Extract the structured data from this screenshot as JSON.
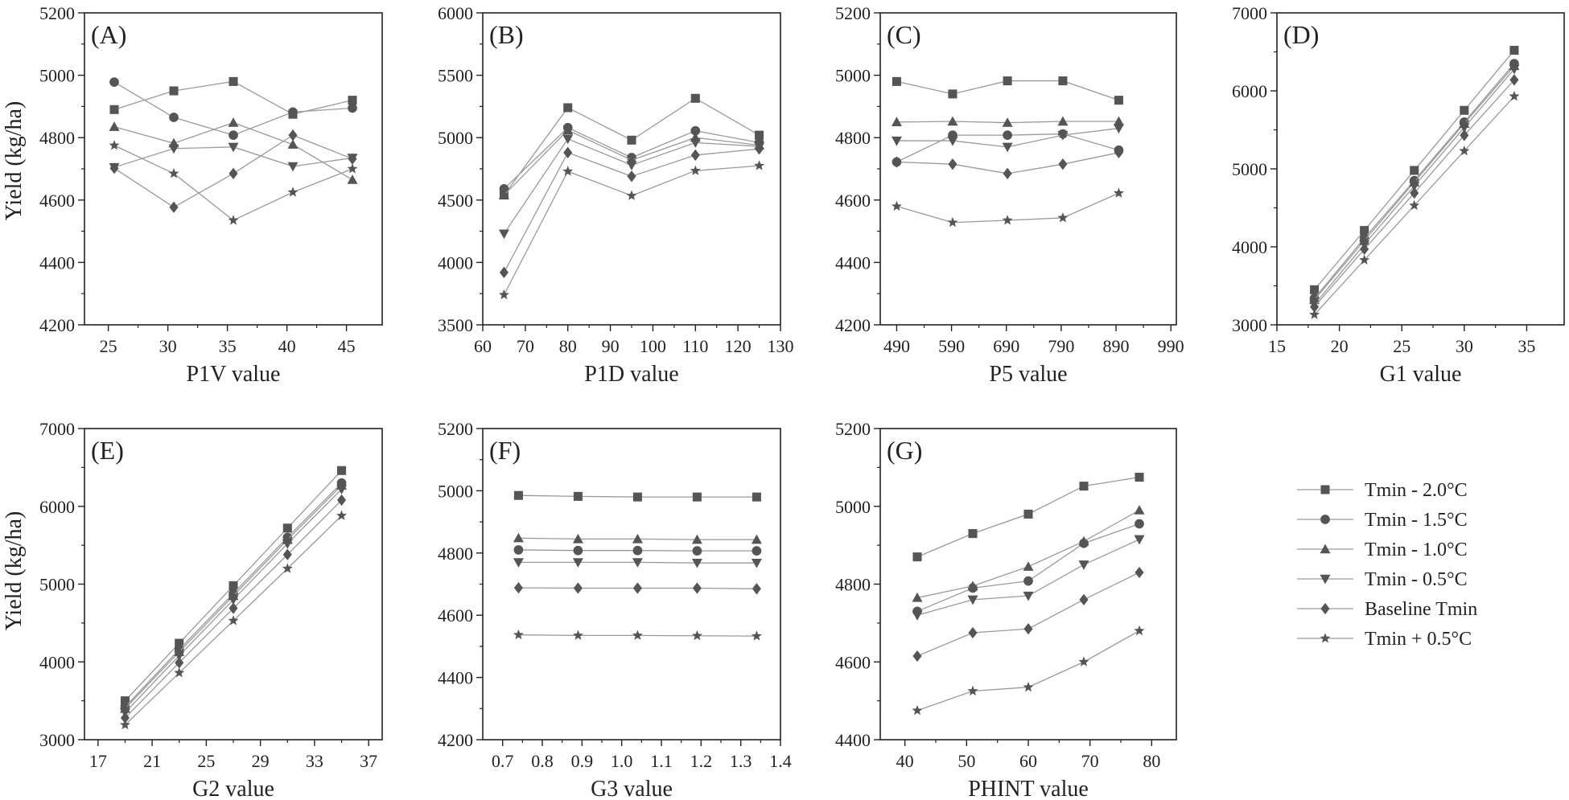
{
  "figure": {
    "ylabel_top": "Yield (kg/ha)",
    "ylabel_bottom": "Yield (kg/ha)"
  },
  "legend": {
    "entries": [
      {
        "label": "Tmin - 2.0°C",
        "marker": "square"
      },
      {
        "label": "Tmin - 1.5°C",
        "marker": "circle"
      },
      {
        "label": "Tmin - 1.0°C",
        "marker": "triangle-up"
      },
      {
        "label": "Tmin - 0.5°C",
        "marker": "triangle-down"
      },
      {
        "label": "Baseline Tmin",
        "marker": "diamond"
      },
      {
        "label": "Tmin + 0.5°C",
        "marker": "star"
      }
    ]
  },
  "colors": {
    "line": "#9a9a9a",
    "marker": "#555555",
    "axis": "#222222"
  },
  "chart_data": [
    {
      "type": "line",
      "panel_label": "(A)",
      "xlabel": "P1V value",
      "ylabel": "Yield (kg/ha)",
      "xlim": [
        23,
        48
      ],
      "xticks": [
        25,
        30,
        35,
        40,
        45
      ],
      "ylim": [
        4200,
        5200
      ],
      "yticks": [
        4200,
        4400,
        4600,
        4800,
        5000,
        5200
      ],
      "x": [
        25.5,
        30.5,
        35.5,
        40.5,
        45.5
      ],
      "series": [
        {
          "name": "Tmin - 2.0°C",
          "values": [
            4890,
            4950,
            4980,
            4875,
            4920
          ]
        },
        {
          "name": "Tmin - 1.5°C",
          "values": [
            4978,
            4865,
            4808,
            4882,
            4895
          ]
        },
        {
          "name": "Tmin - 1.0°C",
          "values": [
            4835,
            4782,
            4848,
            4778,
            4665
          ]
        },
        {
          "name": "Tmin - 0.5°C",
          "values": [
            4705,
            4765,
            4770,
            4708,
            4735
          ]
        },
        {
          "name": "Baseline Tmin",
          "values": [
            4702,
            4577,
            4685,
            4808,
            4732
          ]
        },
        {
          "name": "Tmin + 0.5°C",
          "values": [
            4775,
            4685,
            4535,
            4625,
            4700
          ]
        }
      ]
    },
    {
      "type": "line",
      "panel_label": "(B)",
      "xlabel": "P1D value",
      "ylabel": "Yield (kg/ha)",
      "xlim": [
        60,
        130
      ],
      "xticks": [
        60,
        70,
        80,
        90,
        100,
        110,
        120,
        130
      ],
      "ylim": [
        3500,
        6000
      ],
      "yticks": [
        3500,
        4000,
        4500,
        5000,
        5500,
        6000
      ],
      "x": [
        65,
        80,
        95,
        110,
        125
      ],
      "series": [
        {
          "name": "Tmin - 2.0°C",
          "values": [
            4540,
            5240,
            4980,
            5315,
            5020
          ]
        },
        {
          "name": "Tmin - 1.5°C",
          "values": [
            4590,
            5080,
            4840,
            5055,
            4960
          ]
        },
        {
          "name": "Tmin - 1.0°C",
          "values": [
            4540,
            5060,
            4820,
            5000,
            4940
          ]
        },
        {
          "name": "Tmin - 0.5°C",
          "values": [
            4230,
            4990,
            4780,
            4960,
            4930
          ]
        },
        {
          "name": "Baseline Tmin",
          "values": [
            3920,
            4880,
            4690,
            4860,
            4910
          ]
        },
        {
          "name": "Tmin + 0.5°C",
          "values": [
            3740,
            4730,
            4535,
            4735,
            4775
          ]
        }
      ]
    },
    {
      "type": "line",
      "panel_label": "(C)",
      "xlabel": "P5 value",
      "ylabel": "Yield (kg/ha)",
      "xlim": [
        460,
        1000
      ],
      "xticks": [
        490,
        590,
        690,
        790,
        890,
        990
      ],
      "ylim": [
        4200,
        5200
      ],
      "yticks": [
        4200,
        4400,
        4600,
        4800,
        5000,
        5200
      ],
      "x": [
        490,
        592,
        692,
        793,
        895
      ],
      "series": [
        {
          "name": "Tmin - 2.0°C",
          "values": [
            4980,
            4940,
            4982,
            4982,
            4920
          ]
        },
        {
          "name": "Tmin - 1.5°C",
          "values": [
            4722,
            4808,
            4808,
            4812,
            4760
          ]
        },
        {
          "name": "Tmin - 1.0°C",
          "values": [
            4850,
            4852,
            4848,
            4852,
            4852
          ]
        },
        {
          "name": "Tmin - 0.5°C",
          "values": [
            4790,
            4790,
            4770,
            4808,
            4830
          ]
        },
        {
          "name": "Baseline Tmin",
          "values": [
            4722,
            4715,
            4685,
            4715,
            4752
          ]
        },
        {
          "name": "Tmin + 0.5°C",
          "values": [
            4580,
            4528,
            4535,
            4543,
            4622
          ]
        }
      ]
    },
    {
      "type": "line",
      "panel_label": "(D)",
      "xlabel": "G1 value",
      "ylabel": "Yield (kg/ha)",
      "xlim": [
        15,
        38
      ],
      "xticks": [
        15,
        20,
        25,
        30,
        35
      ],
      "ylim": [
        3000,
        7000
      ],
      "yticks": [
        3000,
        4000,
        5000,
        6000,
        7000
      ],
      "x": [
        18,
        22,
        26,
        30,
        34
      ],
      "series": [
        {
          "name": "Tmin - 2.0°C",
          "values": [
            3450,
            4210,
            4980,
            5750,
            6520
          ]
        },
        {
          "name": "Tmin - 1.5°C",
          "values": [
            3340,
            4110,
            4850,
            5600,
            6350
          ]
        },
        {
          "name": "Tmin - 1.0°C",
          "values": [
            3320,
            4080,
            4830,
            5580,
            6320
          ]
        },
        {
          "name": "Tmin - 0.5°C",
          "values": [
            3260,
            4030,
            4780,
            5530,
            6280
          ]
        },
        {
          "name": "Baseline Tmin",
          "values": [
            3230,
            3970,
            4690,
            5430,
            6140
          ]
        },
        {
          "name": "Tmin + 0.5°C",
          "values": [
            3130,
            3830,
            4530,
            5230,
            5930
          ]
        }
      ]
    },
    {
      "type": "line",
      "panel_label": "(E)",
      "xlabel": "G2 value",
      "ylabel": "Yield (kg/ha)",
      "xlim": [
        16,
        38
      ],
      "xticks": [
        17,
        21,
        25,
        29,
        33,
        37
      ],
      "ylim": [
        3000,
        7000
      ],
      "yticks": [
        3000,
        4000,
        5000,
        6000,
        7000
      ],
      "x": [
        19,
        23,
        27,
        31,
        35
      ],
      "series": [
        {
          "name": "Tmin - 2.0°C",
          "values": [
            3500,
            4240,
            4980,
            5720,
            6460
          ]
        },
        {
          "name": "Tmin - 1.5°C",
          "values": [
            3420,
            4160,
            4880,
            5600,
            6300
          ]
        },
        {
          "name": "Tmin - 1.0°C",
          "values": [
            3400,
            4130,
            4850,
            5570,
            6270
          ]
        },
        {
          "name": "Tmin - 0.5°C",
          "values": [
            3350,
            4080,
            4800,
            5520,
            6220
          ]
        },
        {
          "name": "Baseline Tmin",
          "values": [
            3280,
            3990,
            4690,
            5380,
            6080
          ]
        },
        {
          "name": "Tmin + 0.5°C",
          "values": [
            3190,
            3860,
            4530,
            5200,
            5880
          ]
        }
      ]
    },
    {
      "type": "line",
      "panel_label": "(F)",
      "xlabel": "G3 value",
      "ylabel": "Yield (kg/ha)",
      "xlim": [
        0.65,
        1.4
      ],
      "xticks": [
        0.7,
        0.8,
        0.9,
        1.0,
        1.1,
        1.2,
        1.3,
        1.4
      ],
      "ylim": [
        4200,
        5200
      ],
      "yticks": [
        4200,
        4400,
        4600,
        4800,
        5000,
        5200
      ],
      "x": [
        0.74,
        0.89,
        1.04,
        1.19,
        1.34
      ],
      "series": [
        {
          "name": "Tmin - 2.0°C",
          "values": [
            4985,
            4982,
            4980,
            4980,
            4980
          ]
        },
        {
          "name": "Tmin - 1.5°C",
          "values": [
            4810,
            4808,
            4808,
            4807,
            4807
          ]
        },
        {
          "name": "Tmin - 1.0°C",
          "values": [
            4848,
            4845,
            4845,
            4843,
            4843
          ]
        },
        {
          "name": "Tmin - 0.5°C",
          "values": [
            4770,
            4770,
            4770,
            4768,
            4768
          ]
        },
        {
          "name": "Baseline Tmin",
          "values": [
            4688,
            4687,
            4687,
            4687,
            4685
          ]
        },
        {
          "name": "Tmin + 0.5°C",
          "values": [
            4537,
            4535,
            4535,
            4534,
            4533
          ]
        }
      ]
    },
    {
      "type": "line",
      "panel_label": "(G)",
      "xlabel": "PHINT value",
      "ylabel": "Yield (kg/ha)",
      "xlim": [
        36,
        84
      ],
      "xticks": [
        40,
        50,
        60,
        70,
        80
      ],
      "ylim": [
        4400,
        5200
      ],
      "yticks": [
        4400,
        4600,
        4800,
        5000,
        5200
      ],
      "x": [
        42,
        51,
        60,
        69,
        78
      ],
      "series": [
        {
          "name": "Tmin - 2.0°C",
          "values": [
            4870,
            4930,
            4980,
            5052,
            5075
          ]
        },
        {
          "name": "Tmin - 1.5°C",
          "values": [
            4730,
            4790,
            4808,
            4905,
            4955
          ]
        },
        {
          "name": "Tmin - 1.0°C",
          "values": [
            4765,
            4795,
            4845,
            4910,
            4990
          ]
        },
        {
          "name": "Tmin - 0.5°C",
          "values": [
            4720,
            4760,
            4770,
            4850,
            4915
          ]
        },
        {
          "name": "Baseline Tmin",
          "values": [
            4615,
            4675,
            4685,
            4760,
            4830
          ]
        },
        {
          "name": "Tmin + 0.5°C",
          "values": [
            4475,
            4525,
            4535,
            4600,
            4680
          ]
        }
      ]
    }
  ]
}
